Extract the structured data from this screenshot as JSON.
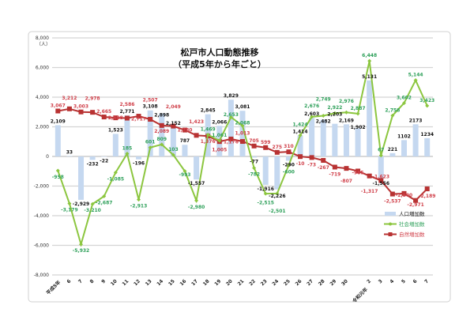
{
  "chart_data": {
    "type": "bar+line",
    "title": "松戸市人口動態推移",
    "subtitle": "（平成5年から年ごと）",
    "ylabel": "（人）",
    "ylim": [
      -8000,
      8000
    ],
    "yticks": [
      8000,
      6000,
      4000,
      2000,
      0,
      -2000,
      -4000,
      -6000,
      -8000
    ],
    "ytick_labels": [
      "8,000",
      "6,000",
      "4,000",
      "2,000",
      "0",
      "-2,000",
      "-4,000",
      "-6,000",
      "-8,000"
    ],
    "grid": true,
    "legend_position": "right",
    "categories": [
      "平成5年",
      "6",
      "7",
      "8",
      "9",
      "10",
      "11",
      "12",
      "13",
      "14",
      "15",
      "16",
      "17",
      "18",
      "19",
      "20",
      "21",
      "22",
      "23",
      "24",
      "25",
      "26",
      "27",
      "28",
      "29",
      "30",
      "令和元年",
      "2",
      "3",
      "4",
      "5",
      "6",
      "7"
    ],
    "series": [
      {
        "name": "人口増加数",
        "type": "bar",
        "color": "#c5d8f0",
        "label_color": "#111111",
        "values": [
          2109,
          33,
          -2929,
          -232,
          -22,
          1523,
          2771,
          -196,
          3108,
          2898,
          2152,
          787,
          -1557,
          2845,
          2066,
          3829,
          3081,
          -77,
          -1916,
          -2226,
          -290,
          1414,
          2603,
          2482,
          2203,
          2169,
          1902,
          5131,
          -1556,
          221,
          1102,
          2173,
          1234
        ],
        "labels": [
          "2,109",
          "33",
          "-2,929",
          "-232",
          "-22",
          "1,523",
          "2,771",
          "-196",
          "3,108",
          "2,898",
          "2,152",
          "787",
          "-1,557",
          "2,845",
          "2,066",
          "3,829",
          "3,081",
          "-77",
          "-1,916",
          "-2,226",
          "-290",
          "1,414",
          "2,603",
          "2,482",
          "2,203",
          "2,169",
          "1,902",
          "5,131",
          "-1,556",
          "221",
          "1102",
          "2173",
          "1234"
        ]
      },
      {
        "name": "社会増加数",
        "type": "line",
        "color": "#8cc63f",
        "label_color": "#2ea05a",
        "values": [
          -958,
          -3179,
          -5932,
          -3210,
          -2687,
          -1085,
          185,
          -2913,
          601,
          809,
          103,
          -993,
          -2980,
          1469,
          1061,
          2653,
          2068,
          -782,
          -2515,
          -2501,
          -600,
          1424,
          2676,
          2749,
          2922,
          2976,
          2887,
          6448,
          67,
          2758,
          3602,
          5144,
          3423
        ],
        "labels": [
          "-958",
          "-3,179",
          "-5,932",
          "-3,210",
          "-2,687",
          "-1,085",
          "185",
          "-2,913",
          "601",
          "809",
          "103",
          "-993",
          "-2,980",
          "1,469",
          "1,061",
          "2,653",
          "2,068",
          "-782",
          "-2,515",
          "-2,501",
          "-600",
          "1,424",
          "2,676",
          "2,749",
          "2,922",
          "2,976",
          "2,887",
          "6,448",
          "67",
          "2,758",
          "3,602",
          "5,144",
          "3,423"
        ]
      },
      {
        "name": "自然増加数",
        "type": "line",
        "color": "#b83232",
        "label_color": "#d0404a",
        "values": [
          3067,
          3212,
          3003,
          2978,
          2665,
          2608,
          2586,
          2717,
          2507,
          2089,
          2049,
          1780,
          1423,
          1376,
          1005,
          1176,
          1013,
          705,
          599,
          275,
          310,
          -10,
          -73,
          -267,
          -719,
          -807,
          -985,
          -1317,
          -1623,
          -2537,
          -2500,
          -2971,
          -2189
        ],
        "labels": [
          "3,067",
          "3,212",
          "3,003",
          "2,978",
          "2,665",
          "2,608",
          "2,586",
          "2,717",
          "2,507",
          "2,089",
          "2,049",
          "1,780",
          "1,423",
          "1,376",
          "1,005",
          "1,176",
          "1,013",
          "705",
          "599",
          "275",
          "310",
          "-10",
          "-73",
          "-267",
          "-719",
          "-807",
          "-985",
          "-1,317",
          "-1,623",
          "-2,537",
          "-2,500",
          "-2,971",
          "-2,189"
        ]
      }
    ]
  }
}
